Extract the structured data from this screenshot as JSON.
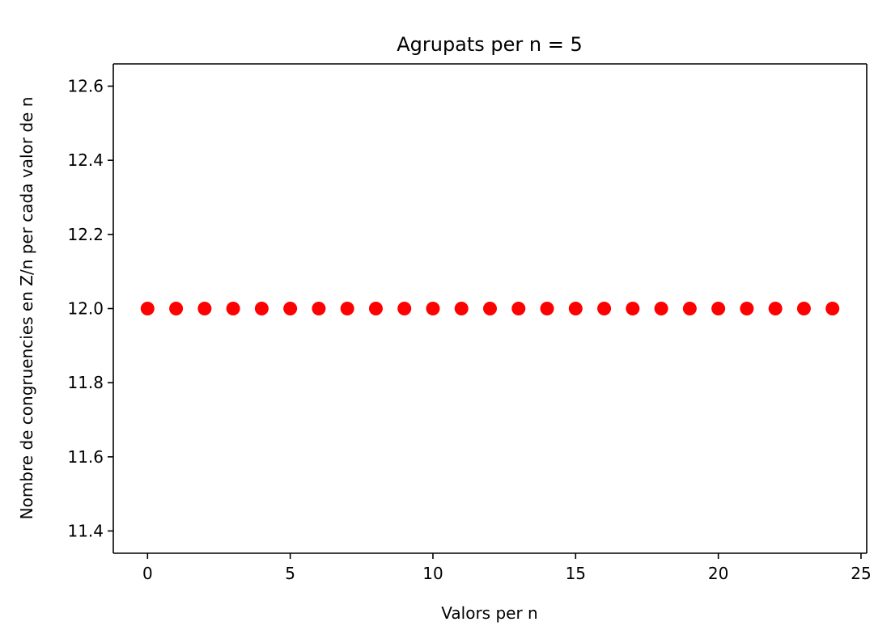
{
  "chart_data": {
    "type": "scatter",
    "title": "Agrupats per n = 5",
    "xlabel": "Valors per n",
    "ylabel": "Nombre de congruencies en Z/n per cada valor de n",
    "xlim": [
      -1.2,
      25.2
    ],
    "ylim": [
      11.34,
      12.66
    ],
    "xticks": [
      0,
      5,
      10,
      15,
      20,
      25
    ],
    "xtick_labels": [
      "0",
      "5",
      "10",
      "15",
      "20",
      "25"
    ],
    "yticks": [
      11.4,
      11.6,
      11.8,
      12.0,
      12.2,
      12.4,
      12.6
    ],
    "ytick_labels": [
      "11.4",
      "11.6",
      "11.8",
      "12.0",
      "12.2",
      "12.4",
      "12.6"
    ],
    "grid": false,
    "marker_color": "#ff0000",
    "series": [
      {
        "x": [
          0,
          1,
          2,
          3,
          4,
          5,
          6,
          7,
          8,
          9,
          10,
          11,
          12,
          13,
          14,
          15,
          16,
          17,
          18,
          19,
          20,
          21,
          22,
          23,
          24
        ],
        "y": [
          12,
          12,
          12,
          12,
          12,
          12,
          12,
          12,
          12,
          12,
          12,
          12,
          12,
          12,
          12,
          12,
          12,
          12,
          12,
          12,
          12,
          12,
          12,
          12,
          12
        ]
      }
    ]
  }
}
